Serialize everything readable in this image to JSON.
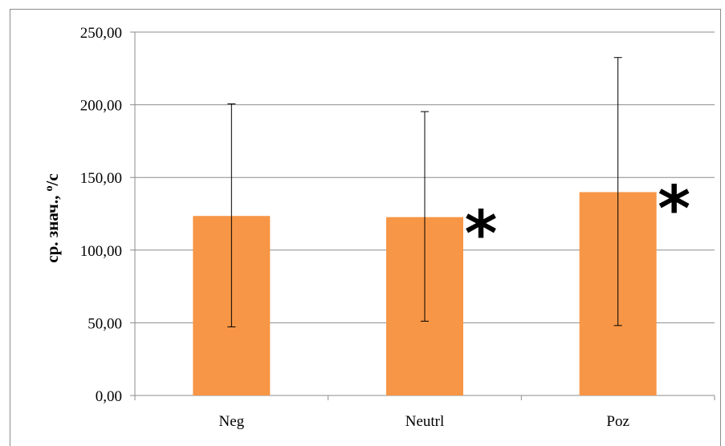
{
  "chart_data": {
    "type": "bar",
    "title": "",
    "xlabel": "",
    "ylabel": "ср. знач., ",
    "ylabel_unit_sup": "о",
    "ylabel_unit": "/с",
    "categories": [
      "Neg",
      "Neutrl",
      "Poz"
    ],
    "values": [
      123.5,
      122.7,
      139.9
    ],
    "error_upper": [
      200.6,
      195.3,
      232.5
    ],
    "error_lower": [
      47.2,
      51.1,
      48.1
    ],
    "significance_markers": [
      "",
      "*",
      "*"
    ],
    "ylim": [
      0,
      250
    ],
    "yticks": [
      "0,00",
      "50,00",
      "100,00",
      "150,00",
      "200,00",
      "250,00"
    ],
    "ytick_values": [
      0,
      50,
      100,
      150,
      200,
      250
    ],
    "grid": true,
    "bar_color": "#f79646",
    "grid_color": "#8c8c8c"
  }
}
